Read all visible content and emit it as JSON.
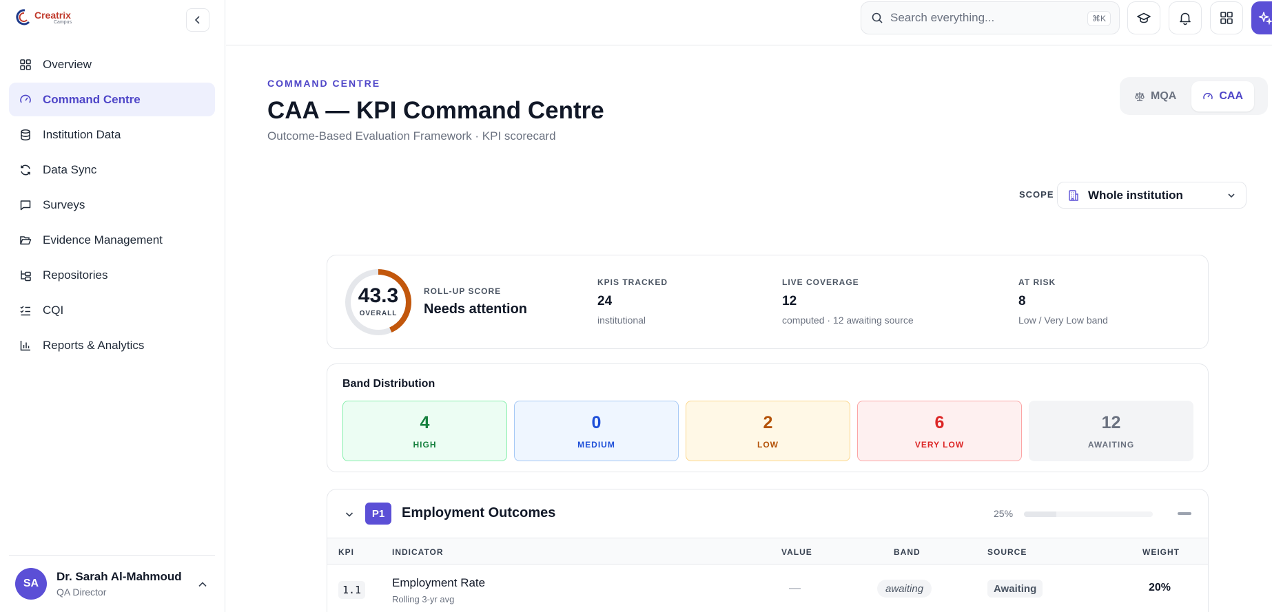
{
  "brand": {
    "name": "Creatrix",
    "sub": "Campus"
  },
  "sidebar": {
    "items": [
      {
        "label": "Overview",
        "icon": "grid-icon"
      },
      {
        "label": "Command Centre",
        "icon": "gauge-icon"
      },
      {
        "label": "Institution Data",
        "icon": "database-icon"
      },
      {
        "label": "Data Sync",
        "icon": "refresh-icon"
      },
      {
        "label": "Surveys",
        "icon": "message-square-icon"
      },
      {
        "label": "Evidence Management",
        "icon": "folder-open-icon"
      },
      {
        "label": "Repositories",
        "icon": "folder-tree-icon"
      },
      {
        "label": "CQI",
        "icon": "list-checks-icon"
      },
      {
        "label": "Reports & Analytics",
        "icon": "bar-chart-icon"
      }
    ],
    "active_index": 1
  },
  "user": {
    "initials": "SA",
    "name": "Dr. Sarah Al-Mahmoud",
    "role": "QA Director"
  },
  "search": {
    "placeholder": "Search everything...",
    "shortcut": "⌘K"
  },
  "header": {
    "eyebrow": "COMMAND CENTRE",
    "title": "CAA — KPI Command Centre",
    "subtitle": "Outcome-Based Evaluation Framework · KPI scorecard"
  },
  "framework": {
    "options": [
      "MQA",
      "CAA"
    ],
    "active": "CAA"
  },
  "scope": {
    "label": "SCOPE",
    "value": "Whole institution"
  },
  "summary": {
    "score": "43.3",
    "score_label": "OVERALL",
    "score_fraction": 0.433,
    "rollup_label": "ROLL-UP SCORE",
    "rollup_status": "Needs attention",
    "metrics": [
      {
        "label": "KPIS TRACKED",
        "value": "24",
        "sub": "institutional"
      },
      {
        "label": "LIVE COVERAGE",
        "value": "12",
        "sub": "computed · 12 awaiting source"
      },
      {
        "label": "AT RISK",
        "value": "8",
        "sub": "Low / Very Low band"
      }
    ]
  },
  "bands": {
    "title": "Band Distribution",
    "items": [
      {
        "label": "HIGH",
        "value": "4"
      },
      {
        "label": "MEDIUM",
        "value": "0"
      },
      {
        "label": "LOW",
        "value": "2"
      },
      {
        "label": "VERY LOW",
        "value": "6"
      },
      {
        "label": "AWAITING",
        "value": "12"
      }
    ]
  },
  "pillar": {
    "code": "P1",
    "name": "Employment Outcomes",
    "percent": "25%",
    "columns": [
      "KPI",
      "INDICATOR",
      "VALUE",
      "BAND",
      "SOURCE",
      "WEIGHT"
    ],
    "rows": [
      {
        "kpi": "1.1",
        "indicator": "Employment Rate",
        "sub": "Rolling 3-yr avg",
        "value": "—",
        "band": "awaiting",
        "source": "Awaiting",
        "weight": "20%"
      }
    ]
  },
  "colors": {
    "accent": "#5b4fd6",
    "ring": "#c2570c"
  }
}
